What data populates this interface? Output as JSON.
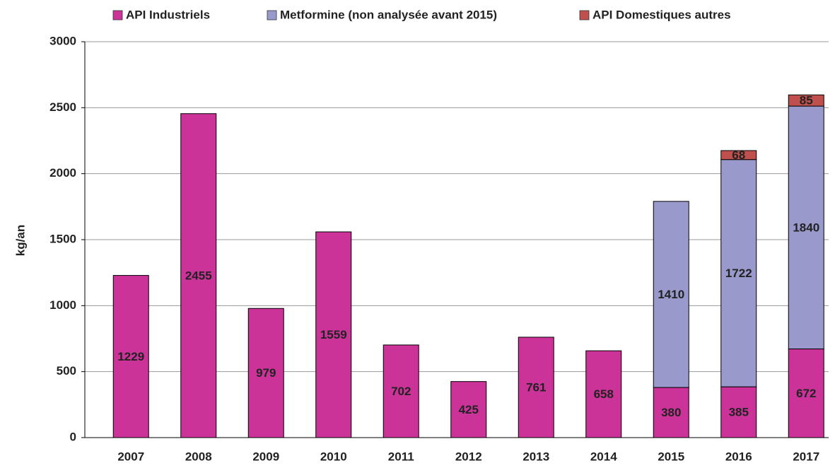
{
  "chart_data": {
    "type": "stacked_bar",
    "y_label": "kg/an",
    "categories": [
      "2007",
      "2008",
      "2009",
      "2010",
      "2011",
      "2012",
      "2013",
      "2014",
      "2015",
      "2016",
      "2017"
    ],
    "series": [
      {
        "name": "API Industriels",
        "color": "#cc3399",
        "values": [
          1229,
          2455,
          979,
          1559,
          702,
          425,
          761,
          658,
          380,
          385,
          672
        ]
      },
      {
        "name": "Metformine (non analysée avant 2015)",
        "color": "#9999cc",
        "values": [
          null,
          null,
          null,
          null,
          null,
          null,
          null,
          null,
          1410,
          1722,
          1840
        ]
      },
      {
        "name": "API Domestiques autres",
        "color": "#c0504d",
        "values": [
          null,
          null,
          null,
          null,
          null,
          null,
          null,
          null,
          null,
          68,
          85
        ]
      }
    ],
    "ylim": [
      0,
      3000
    ],
    "yticks": [
      0,
      500,
      1000,
      1500,
      2000,
      2500,
      3000
    ],
    "grid": true,
    "legend": "top"
  }
}
